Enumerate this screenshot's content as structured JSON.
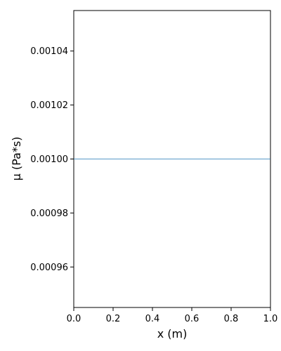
{
  "chart_data": {
    "type": "line",
    "title": "",
    "xlabel": "x (m)",
    "ylabel": "μ (Pa*s)",
    "xlim": [
      0.0,
      1.0
    ],
    "ylim": [
      0.000945,
      0.001055
    ],
    "x_ticks": [
      0.0,
      0.2,
      0.4,
      0.6,
      0.8,
      1.0
    ],
    "x_tick_labels": [
      "0.0",
      "0.2",
      "0.4",
      "0.6",
      "0.8",
      "1.0"
    ],
    "y_ticks": [
      0.00096,
      0.00098,
      0.001,
      0.00102,
      0.00104
    ],
    "y_tick_labels": [
      "0.00096",
      "0.00098",
      "0.00100",
      "0.00102",
      "0.00104"
    ],
    "grid": false,
    "legend": "none",
    "series": [
      {
        "color": "#1f77b4",
        "x": [
          0.0,
          1.0
        ],
        "y": [
          0.001,
          0.001
        ]
      }
    ]
  }
}
